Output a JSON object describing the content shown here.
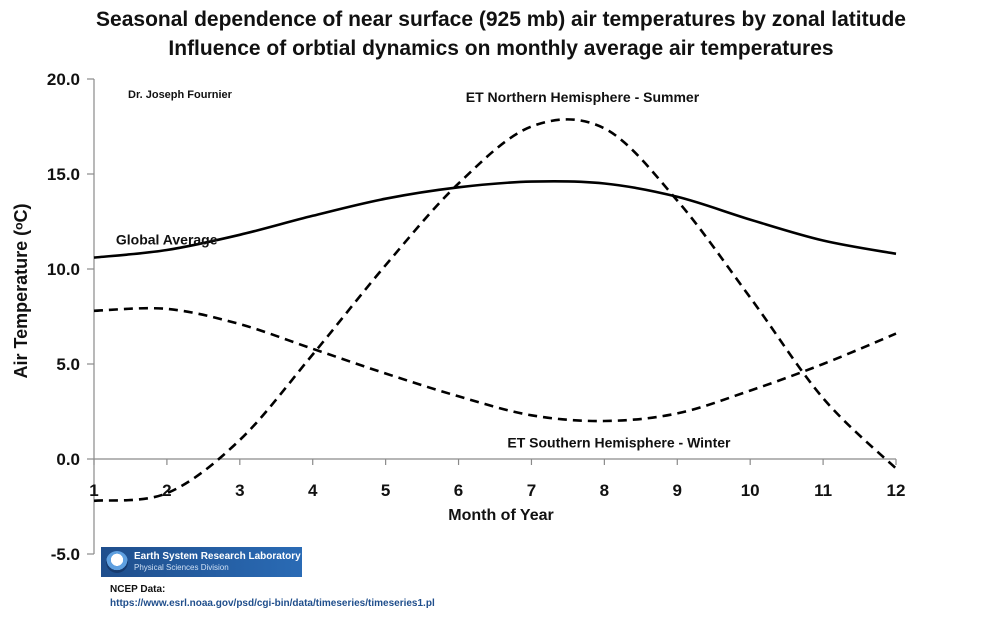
{
  "titles": {
    "line1": "Seasonal dependence of near surface (925 mb) air temperatures by zonal latitude",
    "line2": "Influence of orbtial dynamics on monthly average air temperatures"
  },
  "chart_data": {
    "type": "line",
    "x": [
      1,
      2,
      3,
      4,
      5,
      6,
      7,
      8,
      9,
      10,
      11,
      12
    ],
    "xlabel": "Month of Year",
    "ylabel": "Air Temperature (ᵒC)",
    "xlim": [
      1,
      12
    ],
    "ylim": [
      -5,
      20
    ],
    "xticks": [
      "1",
      "2",
      "3",
      "4",
      "5",
      "6",
      "7",
      "8",
      "9",
      "10",
      "11",
      "12"
    ],
    "yticks": [
      "-5.0",
      "0.0",
      "5.0",
      "10.0",
      "15.0",
      "20.0"
    ],
    "grid": false,
    "legend": "none",
    "author": "Dr. Joseph Fournier",
    "series": [
      {
        "name": "Global Average",
        "style": "solid",
        "values": [
          10.6,
          11.0,
          11.8,
          12.8,
          13.7,
          14.3,
          14.6,
          14.5,
          13.8,
          12.6,
          11.5,
          10.8
        ]
      },
      {
        "name": "ET Northern Hemisphere - Summer",
        "style": "dashed",
        "values": [
          -2.2,
          -1.8,
          1.0,
          5.5,
          10.2,
          14.5,
          17.5,
          17.4,
          13.6,
          8.5,
          3.2,
          -0.5
        ]
      },
      {
        "name": "ET Southern Hemisphere - Winter",
        "style": "dashed",
        "values": [
          7.8,
          7.9,
          7.1,
          5.8,
          4.5,
          3.3,
          2.3,
          2.0,
          2.4,
          3.6,
          5.0,
          6.6
        ]
      }
    ]
  },
  "footer": {
    "logo_name": "Earth System Research Laboratory",
    "logo_division": "Physical Sciences Division",
    "source_label": "NCEP Data:",
    "source_url": "https://www.esrl.noaa.gov/psd/cgi-bin/data/timeseries/timeseries1.pl"
  }
}
